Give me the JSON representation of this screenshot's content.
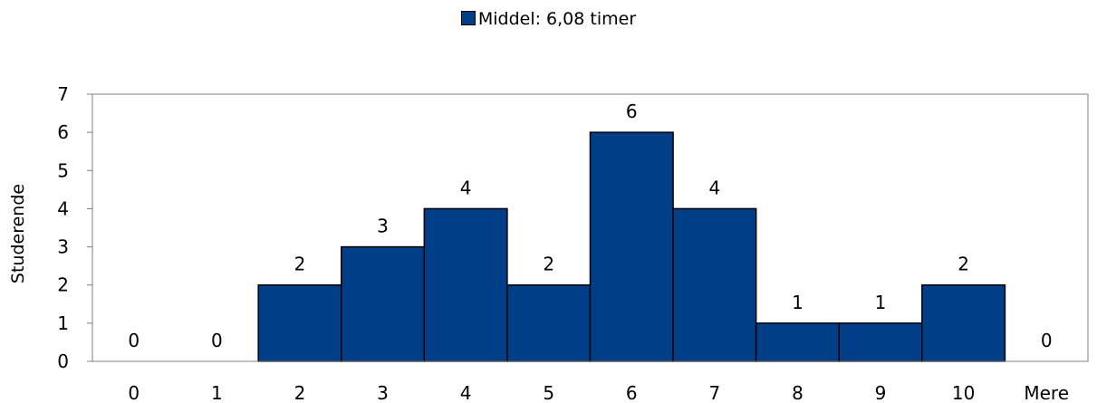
{
  "chart_data": {
    "type": "bar",
    "categories": [
      "0",
      "1",
      "2",
      "3",
      "4",
      "5",
      "6",
      "7",
      "8",
      "9",
      "10",
      "Mere"
    ],
    "series": [
      {
        "name": "Middel: 6,08 timer",
        "values": [
          0,
          0,
          2,
          3,
          4,
          2,
          6,
          4,
          1,
          1,
          2,
          0
        ]
      }
    ],
    "ylabel": "Studerende",
    "xlabel": "",
    "ylim": [
      0,
      7
    ],
    "yticks": [
      0,
      1,
      2,
      3,
      4,
      5,
      6,
      7
    ],
    "grid": false,
    "legend_position": "top-center",
    "data_labels": true,
    "bar_color": "#003f87"
  }
}
